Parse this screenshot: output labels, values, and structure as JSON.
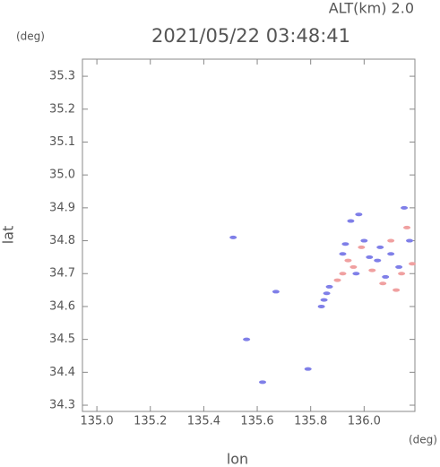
{
  "chart_data": {
    "type": "scatter",
    "title": "2021/05/22 03:48:41",
    "annotation": "ALT(km) 2.0",
    "y_unit": "(deg)",
    "x_unit": "(deg)",
    "xlabel": "lon",
    "ylabel": "lat",
    "xlim": [
      134.946,
      136.19
    ],
    "ylim": [
      34.281,
      35.352
    ],
    "xticks": [
      {
        "value": 135,
        "label": "135.0"
      },
      135.2,
      135.4,
      135.6,
      135.8,
      {
        "value": 136,
        "label": "136.0"
      }
    ],
    "yticks": [
      34.3,
      34.4,
      34.5,
      34.6,
      34.7,
      34.8,
      34.9,
      {
        "value": 35,
        "label": "35.0"
      },
      35.1,
      35.2,
      35.3
    ],
    "series": [
      {
        "color": "#7f7fe8",
        "x": [
          135.51,
          135.56,
          135.62,
          135.79,
          135.67,
          135.84,
          135.85,
          135.86,
          135.87,
          135.93,
          135.95,
          135.98,
          136.0,
          136.02,
          136.06,
          136.1,
          136.15,
          136.13,
          135.97,
          136.08,
          136.05,
          136.17,
          135.92
        ],
        "values": [
          34.81,
          34.5,
          34.37,
          34.41,
          34.645,
          34.6,
          34.62,
          34.64,
          34.66,
          34.79,
          34.86,
          34.88,
          34.8,
          34.75,
          34.78,
          34.76,
          34.9,
          34.72,
          34.7,
          34.69,
          34.74,
          34.8,
          34.76
        ]
      },
      {
        "color": "#f0a0a0",
        "x": [
          135.94,
          135.96,
          135.99,
          136.03,
          136.07,
          136.12,
          136.16,
          136.18,
          135.92,
          136.1,
          136.14,
          135.9
        ],
        "values": [
          34.74,
          34.72,
          34.78,
          34.71,
          34.67,
          34.65,
          34.84,
          34.73,
          34.7,
          34.8,
          34.7,
          34.68
        ]
      }
    ]
  }
}
